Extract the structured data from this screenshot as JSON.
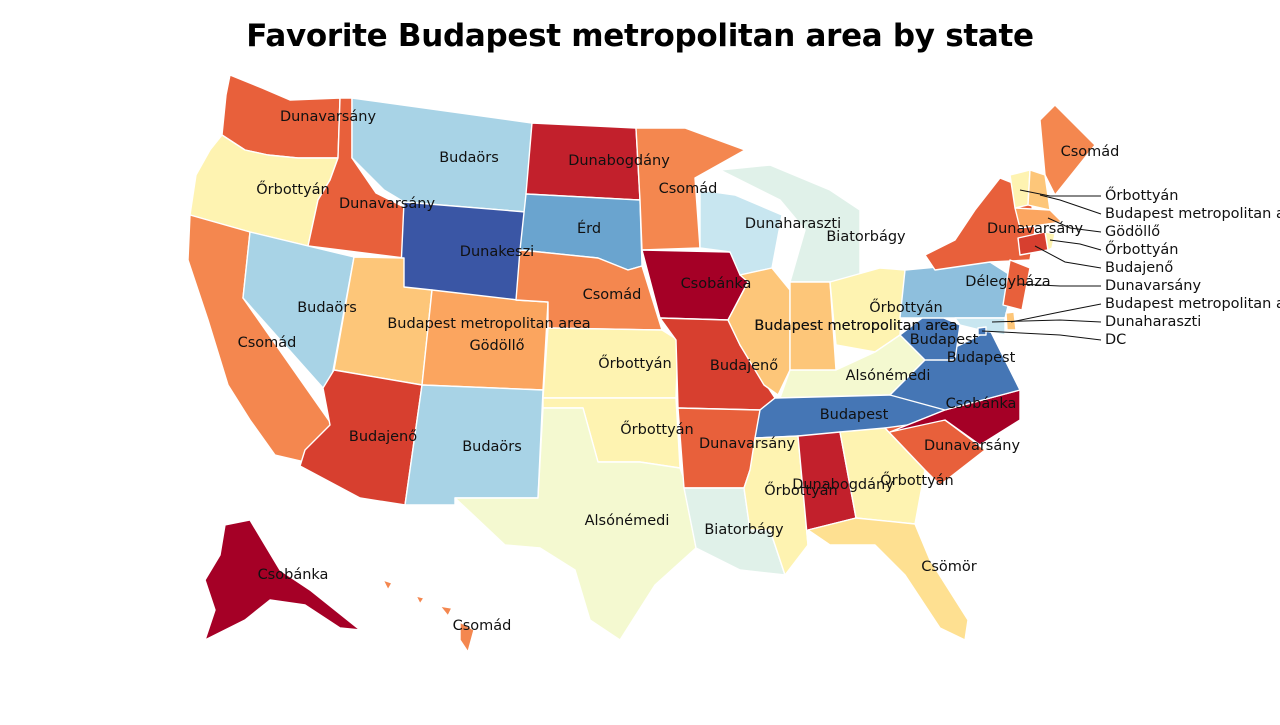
{
  "title": "Favorite Budapest metropolitan area by state",
  "palette": {
    "csobanka": "#a50026",
    "dunabogdany": "#c2202c",
    "budajeno": "#d73f2f",
    "dunavarsany": "#e8603b",
    "csomad": "#f4874f",
    "godollo": "#fba55f",
    "budapest_metro": "#fdc679",
    "csomor": "#fee091",
    "orbottyan": "#fef3b1",
    "alsonemedi": "#f4f9d0",
    "biatorbagy": "#e0f1e9",
    "dunaharaszti": "#c8e6f0",
    "budaors": "#a8d3e6",
    "delegyhaza": "#8ebfdd",
    "erd": "#6aa4cf",
    "budapest": "#4576b5",
    "dunakeszi": "#3a56a5"
  },
  "states": [
    {
      "code": "WA",
      "value": "Dunavarsány",
      "color_key": "dunavarsany"
    },
    {
      "code": "OR",
      "value": "Őrbottyán",
      "color_key": "orbottyan"
    },
    {
      "code": "CA",
      "value": "Csomád",
      "color_key": "csomad"
    },
    {
      "code": "ID",
      "value": "Dunavarsány",
      "color_key": "dunavarsany"
    },
    {
      "code": "NV",
      "value": "Budaörs",
      "color_key": "budaors"
    },
    {
      "code": "MT",
      "value": "Budaörs",
      "color_key": "budaors"
    },
    {
      "code": "WY",
      "value": "Dunakeszi",
      "color_key": "dunakeszi"
    },
    {
      "code": "UT",
      "value": "Budapest metropolitan area",
      "color_key": "budapest_metro"
    },
    {
      "code": "CO",
      "value": "Gödöllő",
      "color_key": "godollo"
    },
    {
      "code": "AZ",
      "value": "Budajenő",
      "color_key": "budajeno"
    },
    {
      "code": "NM",
      "value": "Budaörs",
      "color_key": "budaors"
    },
    {
      "code": "ND",
      "value": "Dunabogdány",
      "color_key": "dunabogdany"
    },
    {
      "code": "SD",
      "value": "Érd",
      "color_key": "erd"
    },
    {
      "code": "NE",
      "value": "Csomád",
      "color_key": "csomad"
    },
    {
      "code": "KS",
      "value": "Őrbottyán",
      "color_key": "orbottyan"
    },
    {
      "code": "OK",
      "value": "Őrbottyán",
      "color_key": "orbottyan"
    },
    {
      "code": "TX",
      "value": "Alsónémedi",
      "color_key": "alsonemedi"
    },
    {
      "code": "MN",
      "value": "Csomád",
      "color_key": "csomad"
    },
    {
      "code": "IA",
      "value": "Csobánka",
      "color_key": "csobanka"
    },
    {
      "code": "MO",
      "value": "Budajenő",
      "color_key": "budajeno"
    },
    {
      "code": "AR",
      "value": "Dunavarsány",
      "color_key": "dunavarsany"
    },
    {
      "code": "LA",
      "value": "Biatorbágy",
      "color_key": "biatorbagy"
    },
    {
      "code": "WI",
      "value": "Dunaharaszti",
      "color_key": "dunaharaszti"
    },
    {
      "code": "MI",
      "value": "Biatorbágy",
      "color_key": "biatorbagy"
    },
    {
      "code": "IL",
      "value": "Budapest metropolitan area",
      "color_key": "budapest_metro"
    },
    {
      "code": "IN",
      "value": "Budapest metropolitan area",
      "color_key": "budapest_metro"
    },
    {
      "code": "OH",
      "value": "Őrbottyán",
      "color_key": "orbottyan"
    },
    {
      "code": "KY",
      "value": "Alsónémedi",
      "color_key": "alsonemedi"
    },
    {
      "code": "TN",
      "value": "Budapest",
      "color_key": "budapest"
    },
    {
      "code": "MS",
      "value": "Őrbottyán",
      "color_key": "orbottyan"
    },
    {
      "code": "AL",
      "value": "Dunabogdány",
      "color_key": "dunabogdany"
    },
    {
      "code": "GA",
      "value": "Őrbottyán",
      "color_key": "orbottyan"
    },
    {
      "code": "FL",
      "value": "Csömör",
      "color_key": "csomor"
    },
    {
      "code": "SC",
      "value": "Dunavarsány",
      "color_key": "dunavarsany"
    },
    {
      "code": "NC",
      "value": "Csobánka",
      "color_key": "csobanka"
    },
    {
      "code": "VA",
      "value": "Budapest",
      "color_key": "budapest"
    },
    {
      "code": "WV",
      "value": "Budapest",
      "color_key": "budapest"
    },
    {
      "code": "PA",
      "value": "Délegyháza",
      "color_key": "delegyhaza"
    },
    {
      "code": "NY",
      "value": "Dunavarsány",
      "color_key": "dunavarsany"
    },
    {
      "code": "ME",
      "value": "Csomád",
      "color_key": "csomad"
    },
    {
      "code": "NJ",
      "value": "Dunavarsány",
      "color_key": "dunavarsany"
    },
    {
      "code": "AK",
      "value": "Csobánka",
      "color_key": "csobanka"
    },
    {
      "code": "HI",
      "value": "Csomád",
      "color_key": "csomad"
    },
    {
      "code": "VT",
      "value": "Őrbottyán",
      "color_key": "orbottyan"
    },
    {
      "code": "NH",
      "value": "Budapest metropolitan area",
      "color_key": "budapest_metro"
    },
    {
      "code": "MA",
      "value": "Gödöllő",
      "color_key": "godollo"
    },
    {
      "code": "RI",
      "value": "Őrbottyán",
      "color_key": "orbottyan"
    },
    {
      "code": "CT",
      "value": "Budajenő",
      "color_key": "budajeno"
    },
    {
      "code": "DE",
      "value": "Budapest metropolitan area",
      "color_key": "budapest_metro"
    },
    {
      "code": "MD",
      "value": "Dunaharaszti",
      "color_key": "dunaharaszti"
    },
    {
      "code": "DC",
      "value": "DC",
      "color_key": "budapest"
    }
  ],
  "callouts": [
    {
      "text": "Őrbottyán"
    },
    {
      "text": "Budapest metropolitan area"
    },
    {
      "text": "Gödöllő"
    },
    {
      "text": "Őrbottyán"
    },
    {
      "text": "Budajenő"
    },
    {
      "text": "Dunavarsány"
    },
    {
      "text": "Budapest metropolitan area"
    },
    {
      "text": "Dunaharaszti"
    },
    {
      "text": "DC"
    }
  ]
}
